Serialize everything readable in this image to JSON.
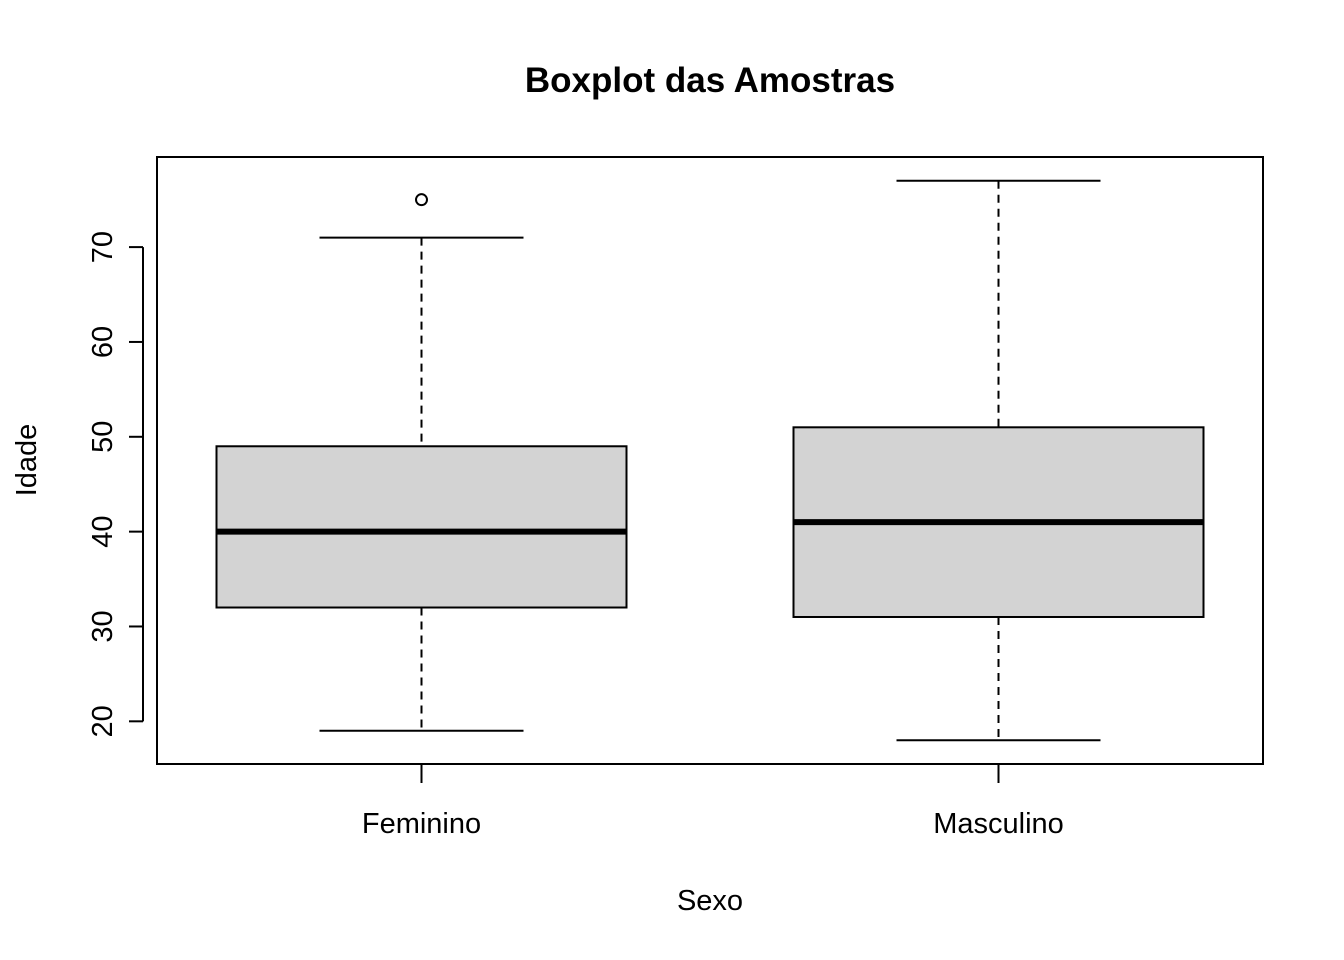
{
  "chart_data": {
    "type": "boxplot",
    "title": "Boxplot das Amostras",
    "xlabel": "Sexo",
    "ylabel": "Idade",
    "ylim": [
      15.5,
      79.5
    ],
    "yticks": [
      20,
      30,
      40,
      50,
      60,
      70
    ],
    "categories": [
      "Feminino",
      "Masculino"
    ],
    "boxes": [
      {
        "name": "Feminino",
        "whisker_low": 19,
        "q1": 32,
        "median": 40,
        "q3": 49,
        "whisker_high": 71,
        "outliers": [
          75
        ]
      },
      {
        "name": "Masculino",
        "whisker_low": 18,
        "q1": 31,
        "median": 41,
        "q3": 51,
        "whisker_high": 77,
        "outliers": []
      }
    ],
    "box_fill": "#d3d3d3",
    "line_color": "#000000"
  }
}
